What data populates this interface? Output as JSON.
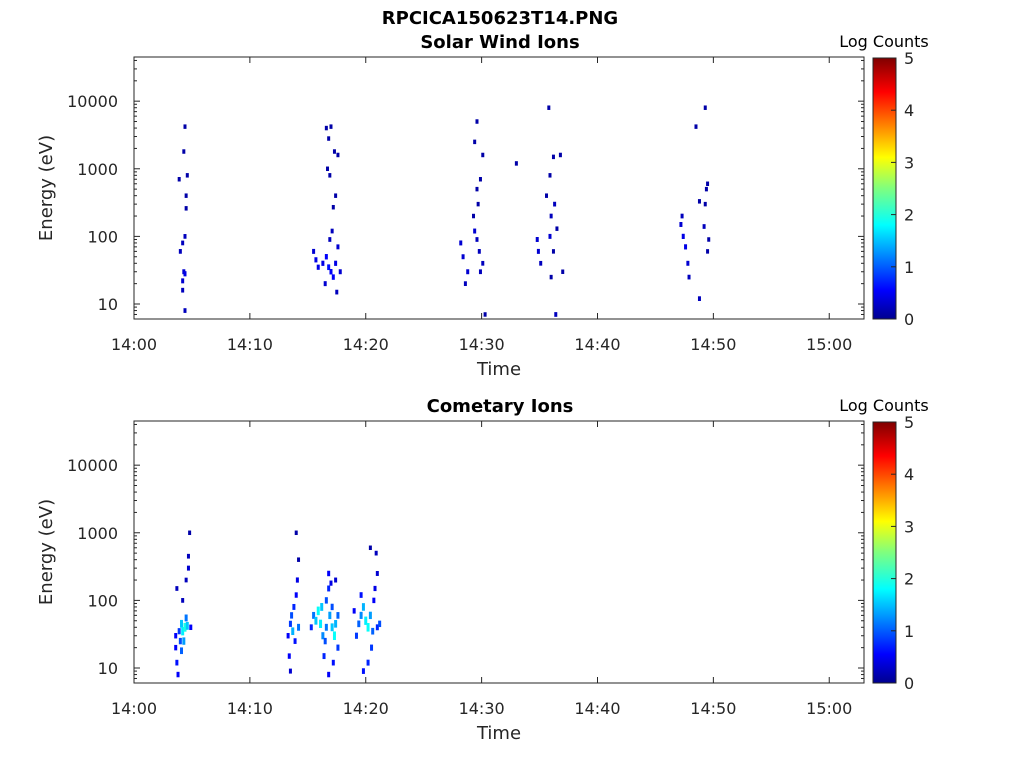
{
  "figure_title": "RPCICA150623T14.PNG",
  "chart_data": [
    {
      "type": "heatmap",
      "title": "Solar Wind Ions",
      "xlabel": "Time",
      "ylabel": "Energy (eV)",
      "x_ticks": [
        "14:00",
        "14:10",
        "14:20",
        "14:30",
        "14:40",
        "14:50",
        "15:00"
      ],
      "y_ticks": [
        "10",
        "100",
        "1000",
        "10000"
      ],
      "y_scale": "log",
      "y_range": [
        6,
        45000
      ],
      "x_range": [
        "14:00",
        "15:03"
      ],
      "colorbar": {
        "label": "Log Counts",
        "ticks": [
          "0",
          "1",
          "2",
          "3",
          "4",
          "5"
        ],
        "range": [
          0,
          5
        ],
        "colormap": "jet"
      },
      "points": [
        [
          4.3,
          30,
          0.4
        ],
        [
          4.4,
          28,
          0.5
        ],
        [
          4.2,
          22,
          0.4
        ],
        [
          4.2,
          16,
          0.3
        ],
        [
          4.4,
          8,
          0.3
        ],
        [
          4.0,
          60,
          0.3
        ],
        [
          4.2,
          80,
          0.3
        ],
        [
          4.4,
          100,
          0.3
        ],
        [
          3.9,
          700,
          0.2
        ],
        [
          4.3,
          1800,
          0.2
        ],
        [
          4.5,
          400,
          0.2
        ],
        [
          4.4,
          4200,
          0.2
        ],
        [
          4.6,
          800,
          0.2
        ],
        [
          4.5,
          260,
          0.2
        ],
        [
          15.5,
          60,
          0.4
        ],
        [
          15.7,
          45,
          0.5
        ],
        [
          15.9,
          35,
          0.5
        ],
        [
          16.3,
          40,
          0.5
        ],
        [
          16.6,
          50,
          0.6
        ],
        [
          16.8,
          35,
          0.7
        ],
        [
          17.0,
          30,
          0.6
        ],
        [
          17.2,
          25,
          0.6
        ],
        [
          17.4,
          40,
          0.5
        ],
        [
          17.6,
          70,
          0.4
        ],
        [
          17.8,
          30,
          0.4
        ],
        [
          16.5,
          20,
          0.4
        ],
        [
          17.5,
          15,
          0.3
        ],
        [
          16.9,
          90,
          0.3
        ],
        [
          17.1,
          120,
          0.3
        ],
        [
          16.7,
          1000,
          0.2
        ],
        [
          16.6,
          4000,
          0.2
        ],
        [
          17.0,
          4200,
          0.2
        ],
        [
          17.3,
          1800,
          0.2
        ],
        [
          17.6,
          1600,
          0.2
        ],
        [
          16.9,
          800,
          0.2
        ],
        [
          17.4,
          400,
          0.2
        ],
        [
          17.2,
          270,
          0.2
        ],
        [
          16.8,
          2800,
          0.2
        ],
        [
          28.2,
          80,
          0.4
        ],
        [
          28.4,
          50,
          0.4
        ],
        [
          28.8,
          30,
          0.4
        ],
        [
          28.6,
          20,
          0.3
        ],
        [
          29.4,
          120,
          0.4
        ],
        [
          29.6,
          90,
          0.3
        ],
        [
          29.8,
          60,
          0.3
        ],
        [
          30.1,
          40,
          0.3
        ],
        [
          29.9,
          30,
          0.3
        ],
        [
          29.3,
          200,
          0.2
        ],
        [
          29.7,
          300,
          0.2
        ],
        [
          29.9,
          700,
          0.2
        ],
        [
          29.6,
          5000,
          0.2
        ],
        [
          30.1,
          1600,
          0.2
        ],
        [
          29.4,
          2500,
          0.2
        ],
        [
          33.0,
          1200,
          0.2
        ],
        [
          30.3,
          7,
          0.2
        ],
        [
          29.6,
          500,
          0.2
        ],
        [
          34.8,
          90,
          0.4
        ],
        [
          34.9,
          60,
          0.4
        ],
        [
          35.1,
          40,
          0.3
        ],
        [
          35.9,
          100,
          0.4
        ],
        [
          36.0,
          200,
          0.3
        ],
        [
          36.3,
          300,
          0.3
        ],
        [
          36.5,
          130,
          0.2
        ],
        [
          36.2,
          60,
          0.2
        ],
        [
          35.6,
          400,
          0.2
        ],
        [
          35.9,
          800,
          0.2
        ],
        [
          36.2,
          1500,
          0.2
        ],
        [
          35.8,
          8000,
          0.2
        ],
        [
          36.8,
          1600,
          0.2
        ],
        [
          36.4,
          7,
          0.3
        ],
        [
          36.0,
          25,
          0.2
        ],
        [
          37.0,
          30,
          0.2
        ],
        [
          47.2,
          150,
          0.4
        ],
        [
          47.4,
          100,
          0.5
        ],
        [
          47.6,
          70,
          0.5
        ],
        [
          47.8,
          40,
          0.4
        ],
        [
          47.9,
          25,
          0.3
        ],
        [
          47.3,
          200,
          0.3
        ],
        [
          48.8,
          12,
          0.3
        ],
        [
          49.2,
          140,
          0.3
        ],
        [
          49.5,
          60,
          0.2
        ],
        [
          49.6,
          90,
          0.2
        ],
        [
          48.8,
          330,
          0.2
        ],
        [
          49.4,
          500,
          0.2
        ],
        [
          49.5,
          600,
          0.2
        ],
        [
          48.5,
          4200,
          0.2
        ],
        [
          49.3,
          8000,
          0.2
        ],
        [
          49.3,
          300,
          0.2
        ]
      ]
    },
    {
      "type": "heatmap",
      "title": "Cometary Ions",
      "xlabel": "Time",
      "ylabel": "Energy (eV)",
      "x_ticks": [
        "14:00",
        "14:10",
        "14:20",
        "14:30",
        "14:40",
        "14:50",
        "15:00"
      ],
      "y_ticks": [
        "10",
        "100",
        "1000",
        "10000"
      ],
      "y_scale": "log",
      "y_range": [
        6,
        45000
      ],
      "x_range": [
        "14:00",
        "15:03"
      ],
      "colorbar": {
        "label": "Log Counts",
        "ticks": [
          "0",
          "1",
          "2",
          "3",
          "4",
          "5"
        ],
        "range": [
          0,
          5
        ],
        "colormap": "jet"
      },
      "points": [
        [
          3.6,
          30,
          0.6
        ],
        [
          3.6,
          20,
          0.6
        ],
        [
          3.7,
          12,
          0.7
        ],
        [
          3.8,
          8,
          0.6
        ],
        [
          3.9,
          35,
          0.9
        ],
        [
          4.0,
          25,
          1.0
        ],
        [
          4.1,
          45,
          1.6
        ],
        [
          4.2,
          35,
          1.8
        ],
        [
          4.3,
          25,
          1.4
        ],
        [
          4.1,
          18,
          1.1
        ],
        [
          4.4,
          40,
          2.0
        ],
        [
          4.6,
          42,
          1.6
        ],
        [
          4.5,
          55,
          1.2
        ],
        [
          3.7,
          150,
          0.3
        ],
        [
          4.2,
          100,
          0.3
        ],
        [
          4.5,
          200,
          0.3
        ],
        [
          4.7,
          300,
          0.4
        ],
        [
          4.7,
          450,
          0.3
        ],
        [
          4.8,
          1000,
          0.2
        ],
        [
          4.9,
          40,
          0.6
        ],
        [
          13.3,
          30,
          0.6
        ],
        [
          13.5,
          45,
          0.9
        ],
        [
          13.6,
          60,
          1.0
        ],
        [
          13.8,
          80,
          0.8
        ],
        [
          13.9,
          25,
          0.7
        ],
        [
          13.4,
          15,
          0.6
        ],
        [
          13.5,
          9,
          0.4
        ],
        [
          14.0,
          120,
          0.6
        ],
        [
          14.1,
          200,
          0.5
        ],
        [
          14.0,
          1000,
          0.2
        ],
        [
          14.2,
          400,
          0.2
        ],
        [
          14.2,
          40,
          1.2
        ],
        [
          13.7,
          35,
          1.5
        ],
        [
          15.3,
          40,
          0.8
        ],
        [
          15.5,
          60,
          1.2
        ],
        [
          15.7,
          50,
          1.6
        ],
        [
          15.9,
          70,
          1.9
        ],
        [
          16.1,
          45,
          1.8
        ],
        [
          16.3,
          30,
          1.3
        ],
        [
          16.5,
          25,
          1.0
        ],
        [
          16.4,
          15,
          0.8
        ],
        [
          16.6,
          40,
          1.2
        ],
        [
          16.6,
          100,
          1.0
        ],
        [
          16.8,
          150,
          0.8
        ],
        [
          16.8,
          250,
          0.6
        ],
        [
          16.9,
          60,
          1.4
        ],
        [
          17.1,
          80,
          1.0
        ],
        [
          17.1,
          40,
          1.6
        ],
        [
          17.3,
          30,
          1.9
        ],
        [
          17.4,
          45,
          1.5
        ],
        [
          17.6,
          60,
          1.1
        ],
        [
          17.6,
          20,
          0.9
        ],
        [
          17.2,
          12,
          0.7
        ],
        [
          16.8,
          8,
          0.6
        ],
        [
          17.0,
          180,
          0.5
        ],
        [
          17.4,
          200,
          0.4
        ],
        [
          16.2,
          80,
          1.6
        ],
        [
          19.2,
          30,
          0.9
        ],
        [
          19.4,
          45,
          1.1
        ],
        [
          19.6,
          60,
          1.3
        ],
        [
          19.8,
          80,
          1.5
        ],
        [
          20.0,
          50,
          1.8
        ],
        [
          20.2,
          40,
          1.9
        ],
        [
          20.4,
          60,
          1.4
        ],
        [
          20.6,
          35,
          1.1
        ],
        [
          20.5,
          20,
          0.9
        ],
        [
          20.2,
          12,
          0.8
        ],
        [
          19.8,
          9,
          0.7
        ],
        [
          20.7,
          100,
          0.6
        ],
        [
          20.8,
          150,
          0.5
        ],
        [
          21.0,
          250,
          0.4
        ],
        [
          20.9,
          500,
          0.3
        ],
        [
          21.0,
          40,
          0.8
        ],
        [
          21.2,
          45,
          1.0
        ],
        [
          19.6,
          120,
          0.7
        ],
        [
          20.4,
          600,
          0.2
        ],
        [
          19.0,
          70,
          0.6
        ]
      ]
    }
  ]
}
